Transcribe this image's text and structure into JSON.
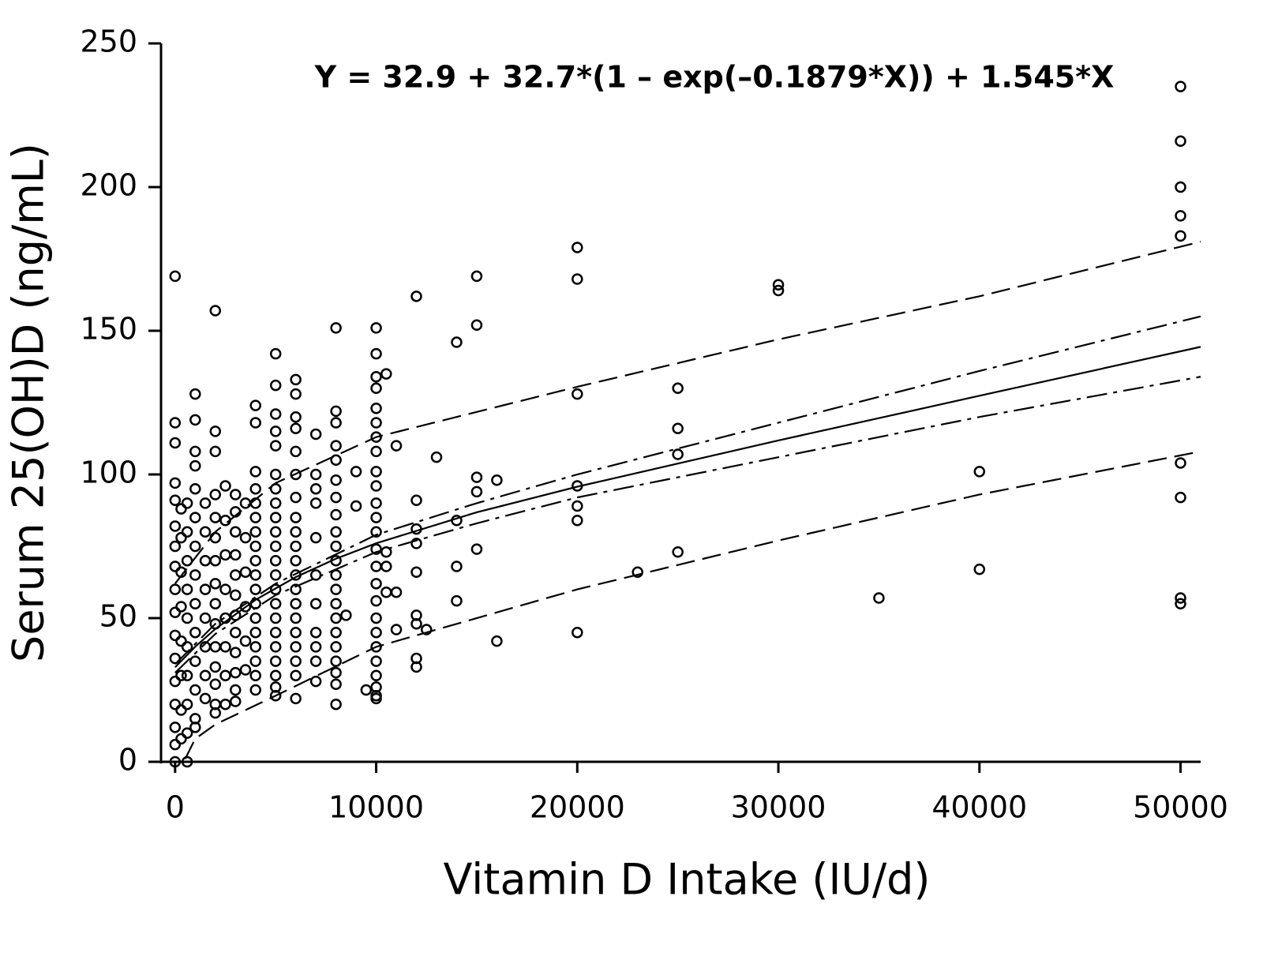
{
  "chart_data": {
    "type": "scatter",
    "annotation": "Y = 32.9 + 32.7*(1 – exp(–0.1879*X)) + 1.545*X",
    "xlabel": "Vitamin D Intake (IU/d)",
    "ylabel": "Serum 25(OH)D (ng/mL)",
    "xlim": [
      -700,
      51000
    ],
    "ylim": [
      0,
      250
    ],
    "xticks": [
      0,
      10000,
      20000,
      30000,
      40000,
      50000
    ],
    "yticks": [
      0,
      50,
      100,
      150,
      200,
      250
    ],
    "grid": false,
    "series": [
      {
        "color": "#000000",
        "marker": "circle",
        "dash": "none",
        "x": [
          50000,
          50000,
          50000,
          50000,
          50000,
          50000,
          50000,
          50000,
          50000,
          40000,
          40000,
          35000,
          30000,
          30000,
          25000,
          25000,
          25000,
          25000,
          23000,
          20000,
          20000,
          20000,
          20000,
          20000,
          20000,
          20000,
          16000,
          16000,
          15000,
          15000,
          15000,
          15000,
          15000,
          14000,
          14000,
          14000,
          14000,
          13000,
          12500,
          12000,
          12000,
          12000,
          12000,
          12000,
          12000,
          12000,
          12000,
          12000,
          11000,
          11000,
          11000,
          10500,
          10500,
          10500,
          10500,
          10000,
          10000,
          10000,
          10000,
          10000,
          10000,
          10000,
          10000,
          10000,
          10000,
          10000,
          10000,
          10000,
          10000,
          10000,
          10000,
          10000,
          10000,
          10000,
          10000,
          10000,
          10000,
          10000,
          10000,
          10000,
          9500,
          9000,
          9000,
          8000,
          8000,
          8000,
          8000,
          8000,
          8000,
          8000,
          8000,
          8000,
          8000,
          8000,
          8000,
          8000,
          8000,
          8000,
          8000,
          8000,
          8000,
          8000,
          8000,
          8000,
          8500,
          7000,
          7000,
          7000,
          7000,
          7000,
          7000,
          7000,
          7000,
          7000,
          7000,
          7000,
          6000,
          6000,
          6000,
          6000,
          6000,
          6000,
          6000,
          6000,
          6000,
          6000,
          6000,
          6000,
          6000,
          6000,
          6000,
          6000,
          6000,
          6000,
          6000,
          6000,
          5000,
          5000,
          5000,
          5000,
          5000,
          5000,
          5000,
          5000,
          5000,
          5000,
          5000,
          5000,
          5000,
          5000,
          5000,
          5000,
          5000,
          5000,
          5000,
          5000,
          5000,
          5000,
          4000,
          4000,
          4000,
          4000,
          4000,
          4000,
          4000,
          4000,
          4000,
          4000,
          4000,
          4000,
          4000,
          4000,
          4000,
          4000,
          4000,
          4000,
          3500,
          3500,
          3500,
          3500,
          3500,
          3500,
          3000,
          3000,
          3000,
          3000,
          3000,
          3000,
          3000,
          3000,
          3000,
          3000,
          3000,
          3000,
          2500,
          2500,
          2500,
          2500,
          2500,
          2500,
          2500,
          2500,
          2000,
          2000,
          2000,
          2000,
          2000,
          2000,
          2000,
          2000,
          2000,
          2000,
          2000,
          2000,
          2000,
          2000,
          2000,
          1500,
          1500,
          1500,
          1500,
          1500,
          1500,
          1500,
          1500,
          1000,
          1000,
          1000,
          1000,
          1000,
          1000,
          1000,
          1000,
          1000,
          1000,
          1000,
          1000,
          1000,
          1000,
          600,
          600,
          600,
          600,
          600,
          600,
          600,
          600,
          600,
          600,
          300,
          300,
          300,
          300,
          300,
          300,
          300,
          300,
          0,
          0,
          0,
          0,
          0,
          0,
          0,
          0,
          0,
          0,
          0,
          0,
          0,
          0,
          0,
          0,
          0
        ],
        "values": [
          235,
          216,
          200,
          190,
          183,
          104,
          92,
          57,
          55,
          101,
          67,
          57,
          166,
          164,
          130,
          116,
          107,
          73,
          66,
          179,
          168,
          128,
          96,
          89,
          84,
          45,
          98,
          42,
          169,
          152,
          99,
          94,
          74,
          146,
          84,
          68,
          56,
          106,
          46,
          162,
          91,
          81,
          76,
          66,
          51,
          48,
          36,
          33,
          110,
          59,
          46,
          135,
          73,
          68,
          59,
          151,
          142,
          134,
          130,
          123,
          118,
          113,
          108,
          101,
          96,
          90,
          85,
          80,
          74,
          68,
          62,
          56,
          50,
          45,
          40,
          35,
          30,
          26,
          23,
          22,
          25,
          101,
          89,
          151,
          122,
          118,
          110,
          105,
          98,
          92,
          86,
          80,
          75,
          70,
          65,
          60,
          55,
          50,
          45,
          40,
          35,
          31,
          27,
          20,
          51,
          114,
          100,
          95,
          90,
          78,
          65,
          55,
          45,
          40,
          35,
          28,
          133,
          128,
          120,
          116,
          108,
          100,
          92,
          85,
          80,
          75,
          70,
          65,
          60,
          55,
          50,
          45,
          40,
          35,
          30,
          22,
          142,
          131,
          121,
          115,
          110,
          100,
          95,
          90,
          85,
          80,
          75,
          70,
          65,
          60,
          55,
          50,
          45,
          40,
          35,
          30,
          26,
          23,
          124,
          118,
          101,
          95,
          90,
          85,
          80,
          75,
          70,
          65,
          60,
          55,
          50,
          45,
          40,
          35,
          30,
          25,
          90,
          78,
          66,
          54,
          42,
          32,
          93,
          87,
          80,
          72,
          65,
          58,
          51,
          45,
          38,
          31,
          25,
          21,
          96,
          84,
          72,
          60,
          50,
          40,
          30,
          20,
          157,
          115,
          108,
          93,
          85,
          78,
          70,
          62,
          55,
          48,
          40,
          33,
          27,
          20,
          17,
          90,
          80,
          70,
          60,
          50,
          40,
          30,
          22,
          128,
          119,
          108,
          103,
          95,
          85,
          75,
          65,
          55,
          45,
          35,
          25,
          15,
          12,
          90,
          80,
          70,
          60,
          50,
          40,
          30,
          20,
          10,
          0,
          88,
          78,
          66,
          54,
          42,
          30,
          18,
          8,
          169,
          118,
          111,
          97,
          91,
          82,
          75,
          68,
          60,
          52,
          44,
          36,
          28,
          20,
          12,
          6,
          0
        ]
      },
      {
        "color": "#000000",
        "marker": "none",
        "dash": "solid",
        "x": [
          0,
          1000,
          2000,
          4000,
          6000,
          8000,
          10000,
          15000,
          20000,
          30000,
          40000,
          51000
        ],
        "values": [
          32.9,
          40.05,
          46.23,
          56.36,
          64.28,
          70.68,
          76.05,
          86.82,
          95.74,
          111.83,
          127.38,
          144.4
        ]
      },
      {
        "color": "#000000",
        "marker": "none",
        "dash": "dashdot",
        "x": [
          0,
          2000,
          5000,
          10000,
          15000,
          20000,
          30000,
          40000,
          51000
        ],
        "values": [
          34,
          48,
          62,
          79,
          90,
          100,
          118,
          136,
          155
        ]
      },
      {
        "color": "#000000",
        "marker": "none",
        "dash": "dashdot",
        "x": [
          0,
          2000,
          5000,
          10000,
          15000,
          20000,
          30000,
          40000,
          51000
        ],
        "values": [
          31,
          44.5,
          58,
          73,
          83,
          92,
          106,
          120,
          134
        ]
      },
      {
        "color": "#000000",
        "marker": "none",
        "dash": "dash",
        "x": [
          0,
          2000,
          5000,
          10000,
          20000,
          30000,
          40000,
          51000
        ],
        "values": [
          62,
          80,
          97,
          113,
          130.5,
          147,
          162,
          181
        ]
      },
      {
        "color": "#000000",
        "marker": "none",
        "dash": "dash",
        "x": [
          500,
          1000,
          2000,
          5000,
          10000,
          20000,
          30000,
          40000,
          51000
        ],
        "values": [
          1,
          8,
          13,
          23,
          40,
          60,
          77,
          93,
          108
        ]
      }
    ]
  }
}
